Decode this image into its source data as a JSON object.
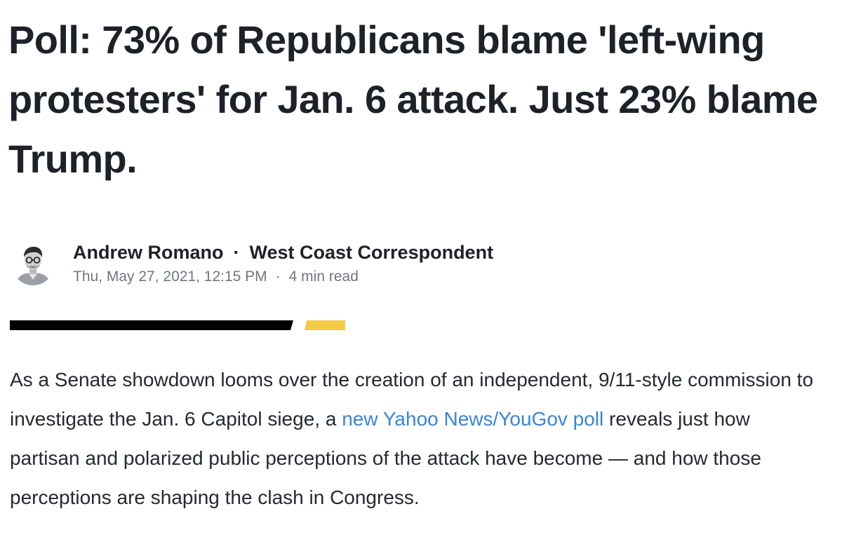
{
  "article": {
    "headline": "Poll: 73% of Republicans blame 'left-wing protesters' for Jan. 6 attack. Just 23% blame Trump.",
    "author": {
      "name": "Andrew Romano",
      "separator": "·",
      "role": "West Coast Correspondent",
      "avatar_icon": "author-headshot"
    },
    "meta": {
      "date": "Thu, May 27, 2021, 12:15 PM",
      "separator": "·",
      "read_time": "4 min read"
    },
    "divider_colors": {
      "primary": "#000000",
      "accent": "#f4cb46"
    },
    "body": {
      "text_before_link": "As a Senate showdown looms over the creation of an independent, 9/11-style commission to investigate the Jan. 6 Capitol siege, a ",
      "link_text": "new Yahoo News/YouGov poll",
      "text_after_link": " reveals just how partisan and polarized public perceptions of the attack have become — and how those perceptions are shaping the clash in Congress.",
      "link_color": "#3b83d9"
    }
  }
}
